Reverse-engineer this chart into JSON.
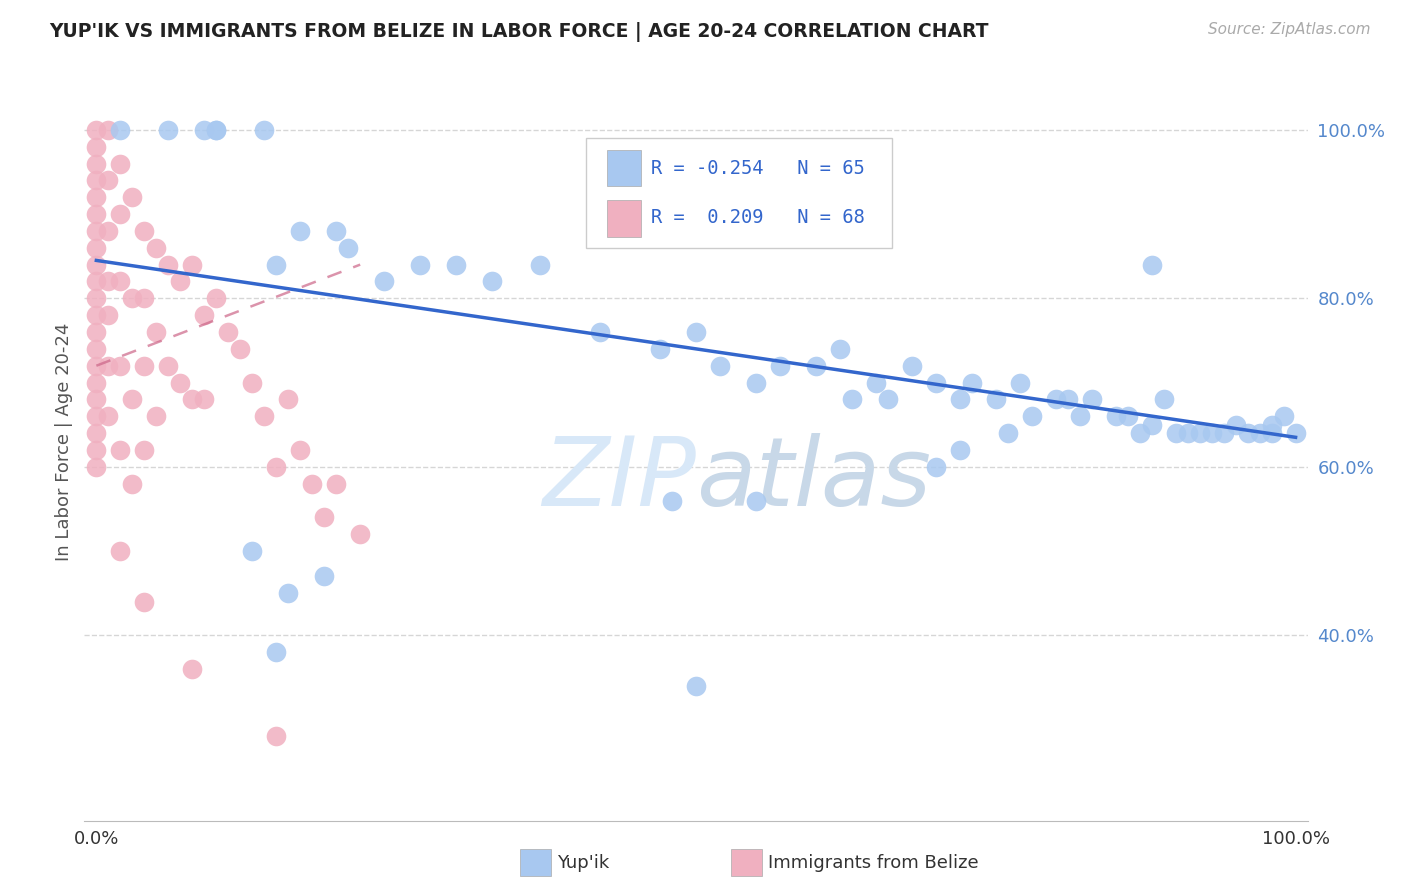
{
  "title": "YUP'IK VS IMMIGRANTS FROM BELIZE IN LABOR FORCE | AGE 20-24 CORRELATION CHART",
  "source": "Source: ZipAtlas.com",
  "ylabel": "In Labor Force | Age 20-24",
  "legend_blue_r": "-0.254",
  "legend_blue_n": "65",
  "legend_pink_r": "0.209",
  "legend_pink_n": "68",
  "legend_label_blue": "Yup'ik",
  "legend_label_pink": "Immigrants from Belize",
  "blue_color": "#a8c8f0",
  "pink_color": "#f0b0c0",
  "trendline_blue_color": "#3366cc",
  "trendline_pink_color": "#cc6688",
  "watermark_color": "#d8e8f8",
  "grid_color": "#cccccc",
  "bg_color": "#ffffff",
  "title_color": "#222222",
  "ytick_color": "#5588cc",
  "xtick_color": "#333333",
  "blue_x": [
    0.02,
    0.06,
    0.09,
    0.1,
    0.1,
    0.14,
    0.15,
    0.17,
    0.2,
    0.21,
    0.24,
    0.27,
    0.3,
    0.33,
    0.37,
    0.42,
    0.47,
    0.5,
    0.52,
    0.55,
    0.57,
    0.6,
    0.62,
    0.63,
    0.65,
    0.66,
    0.68,
    0.7,
    0.72,
    0.73,
    0.75,
    0.77,
    0.78,
    0.8,
    0.81,
    0.82,
    0.83,
    0.85,
    0.86,
    0.87,
    0.88,
    0.89,
    0.9,
    0.91,
    0.92,
    0.93,
    0.94,
    0.95,
    0.96,
    0.97,
    0.98,
    0.98,
    0.99,
    1.0,
    0.13,
    0.16,
    0.19,
    0.55,
    0.48,
    0.7,
    0.72,
    0.76,
    0.88,
    0.15,
    0.5
  ],
  "blue_y": [
    1.0,
    1.0,
    1.0,
    1.0,
    1.0,
    1.0,
    0.84,
    0.88,
    0.88,
    0.86,
    0.82,
    0.84,
    0.84,
    0.82,
    0.84,
    0.76,
    0.74,
    0.76,
    0.72,
    0.7,
    0.72,
    0.72,
    0.74,
    0.68,
    0.7,
    0.68,
    0.72,
    0.7,
    0.68,
    0.7,
    0.68,
    0.7,
    0.66,
    0.68,
    0.68,
    0.66,
    0.68,
    0.66,
    0.66,
    0.64,
    0.65,
    0.68,
    0.64,
    0.64,
    0.64,
    0.64,
    0.64,
    0.65,
    0.64,
    0.64,
    0.65,
    0.64,
    0.66,
    0.64,
    0.5,
    0.45,
    0.47,
    0.56,
    0.56,
    0.6,
    0.62,
    0.64,
    0.84,
    0.38,
    0.34
  ],
  "pink_x": [
    0.0,
    0.0,
    0.0,
    0.0,
    0.0,
    0.0,
    0.0,
    0.0,
    0.0,
    0.0,
    0.0,
    0.0,
    0.0,
    0.0,
    0.0,
    0.0,
    0.0,
    0.0,
    0.0,
    0.0,
    0.0,
    0.01,
    0.01,
    0.01,
    0.01,
    0.01,
    0.01,
    0.01,
    0.02,
    0.02,
    0.02,
    0.02,
    0.02,
    0.03,
    0.03,
    0.03,
    0.03,
    0.04,
    0.04,
    0.04,
    0.04,
    0.05,
    0.05,
    0.05,
    0.06,
    0.06,
    0.07,
    0.07,
    0.08,
    0.08,
    0.09,
    0.09,
    0.1,
    0.11,
    0.12,
    0.13,
    0.14,
    0.15,
    0.16,
    0.17,
    0.18,
    0.19,
    0.2,
    0.22,
    0.15,
    0.08,
    0.04,
    0.02
  ],
  "pink_y": [
    1.0,
    0.98,
    0.96,
    0.94,
    0.92,
    0.9,
    0.88,
    0.86,
    0.84,
    0.82,
    0.8,
    0.78,
    0.76,
    0.74,
    0.72,
    0.7,
    0.68,
    0.66,
    0.64,
    0.62,
    0.6,
    1.0,
    0.94,
    0.88,
    0.82,
    0.78,
    0.72,
    0.66,
    0.96,
    0.9,
    0.82,
    0.72,
    0.62,
    0.92,
    0.8,
    0.68,
    0.58,
    0.88,
    0.8,
    0.72,
    0.62,
    0.86,
    0.76,
    0.66,
    0.84,
    0.72,
    0.82,
    0.7,
    0.84,
    0.68,
    0.78,
    0.68,
    0.8,
    0.76,
    0.74,
    0.7,
    0.66,
    0.6,
    0.68,
    0.62,
    0.58,
    0.54,
    0.58,
    0.52,
    0.28,
    0.36,
    0.44,
    0.5
  ],
  "trendline_blue_x0": 0.0,
  "trendline_blue_y0": 0.845,
  "trendline_blue_x1": 1.0,
  "trendline_blue_y1": 0.635,
  "trendline_pink_x0": 0.0,
  "trendline_pink_y0": 0.72,
  "trendline_pink_x1": 0.22,
  "trendline_pink_y1": 0.84,
  "xlim_min": -0.01,
  "xlim_max": 1.01,
  "ylim_min": 0.18,
  "ylim_max": 1.08
}
